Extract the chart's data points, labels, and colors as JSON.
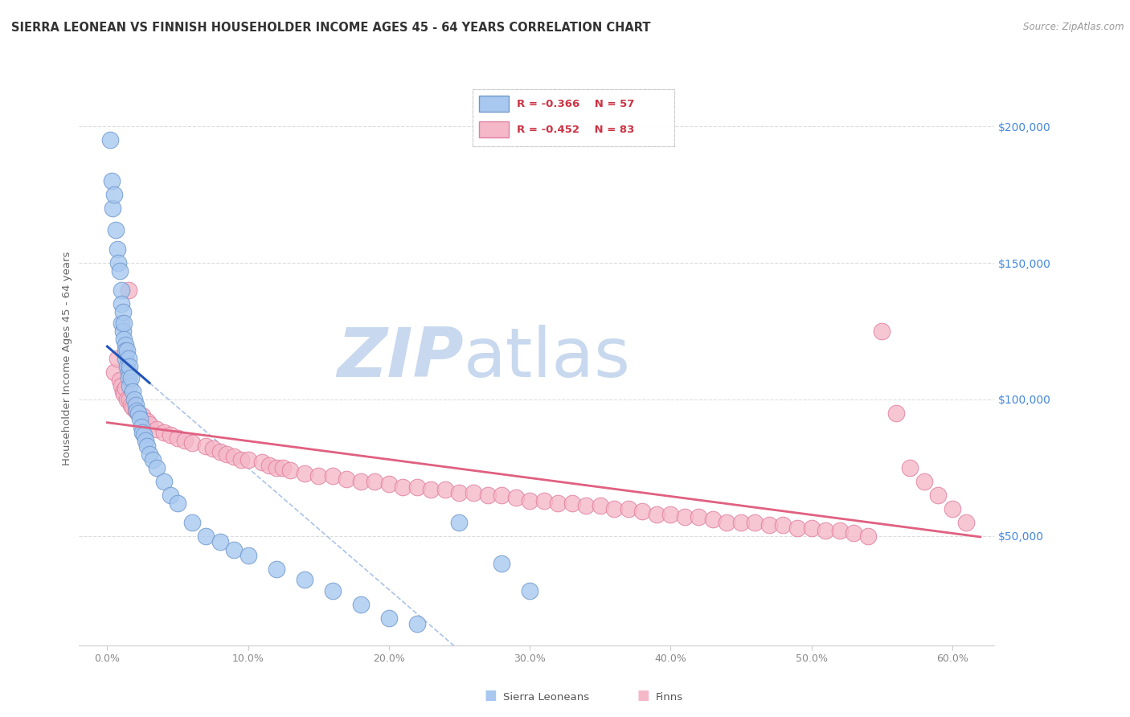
{
  "title": "SIERRA LEONEAN VS FINNISH HOUSEHOLDER INCOME AGES 45 - 64 YEARS CORRELATION CHART",
  "source": "Source: ZipAtlas.com",
  "ylabel": "Householder Income Ages 45 - 64 years",
  "xlabel_ticks": [
    "0.0%",
    "10.0%",
    "20.0%",
    "30.0%",
    "40.0%",
    "50.0%",
    "60.0%"
  ],
  "xlabel_vals": [
    0.0,
    10.0,
    20.0,
    30.0,
    40.0,
    50.0,
    60.0
  ],
  "ytick_vals": [
    50000,
    100000,
    150000,
    200000
  ],
  "ytick_labels": [
    "$50,000",
    "$100,000",
    "$150,000",
    "$200,000"
  ],
  "xlim": [
    -2.0,
    63
  ],
  "ylim": [
    10000,
    220000
  ],
  "legend_r1": "R = -0.366",
  "legend_n1": "N = 57",
  "legend_r2": "R = -0.452",
  "legend_n2": "N = 83",
  "sierra_color": "#A8C8F0",
  "finn_color": "#F5B8C8",
  "sierra_edge": "#7099CC",
  "finn_edge": "#E080A0",
  "sl_line_color": "#2255BB",
  "sl_dash_color": "#88AADE",
  "finn_line_color": "#E06080",
  "background_color": "#ffffff",
  "watermark_zip": "ZIP",
  "watermark_atlas": "atlas",
  "watermark_color": "#C8D8EE",
  "grid_color": "#DDDDDD",
  "title_color": "#333333",
  "axis_label_color": "#666666",
  "ytick_color": "#4488DD",
  "xtick_color": "#888888",
  "sl_x": [
    0.2,
    0.3,
    0.4,
    0.5,
    0.6,
    0.7,
    0.8,
    0.9,
    1.0,
    1.0,
    1.0,
    1.1,
    1.1,
    1.2,
    1.2,
    1.3,
    1.3,
    1.3,
    1.4,
    1.4,
    1.5,
    1.5,
    1.5,
    1.6,
    1.6,
    1.7,
    1.8,
    1.9,
    2.0,
    2.1,
    2.2,
    2.3,
    2.4,
    2.5,
    2.6,
    2.7,
    2.8,
    3.0,
    3.2,
    3.5,
    4.0,
    4.5,
    5.0,
    6.0,
    7.0,
    8.0,
    9.0,
    10.0,
    12.0,
    14.0,
    16.0,
    18.0,
    20.0,
    22.0,
    25.0,
    28.0,
    30.0
  ],
  "sl_y": [
    195000,
    180000,
    170000,
    175000,
    162000,
    155000,
    150000,
    147000,
    140000,
    135000,
    128000,
    132000,
    125000,
    128000,
    122000,
    120000,
    118000,
    115000,
    118000,
    112000,
    115000,
    110000,
    108000,
    112000,
    105000,
    108000,
    103000,
    100000,
    98000,
    96000,
    95000,
    93000,
    90000,
    88000,
    87000,
    85000,
    83000,
    80000,
    78000,
    75000,
    70000,
    65000,
    62000,
    55000,
    50000,
    48000,
    45000,
    43000,
    38000,
    34000,
    30000,
    25000,
    20000,
    18000,
    55000,
    40000,
    30000
  ],
  "finn_x": [
    0.5,
    0.7,
    0.9,
    1.0,
    1.1,
    1.2,
    1.3,
    1.4,
    1.5,
    1.6,
    1.7,
    1.8,
    2.0,
    2.2,
    2.5,
    2.8,
    3.0,
    3.5,
    4.0,
    4.5,
    5.0,
    5.5,
    6.0,
    7.0,
    7.5,
    8.0,
    8.5,
    9.0,
    9.5,
    10.0,
    11.0,
    11.5,
    12.0,
    12.5,
    13.0,
    14.0,
    15.0,
    16.0,
    17.0,
    18.0,
    19.0,
    20.0,
    21.0,
    22.0,
    23.0,
    24.0,
    25.0,
    26.0,
    27.0,
    28.0,
    29.0,
    30.0,
    31.0,
    32.0,
    33.0,
    34.0,
    35.0,
    36.0,
    37.0,
    38.0,
    39.0,
    40.0,
    41.0,
    42.0,
    43.0,
    44.0,
    45.0,
    46.0,
    47.0,
    48.0,
    49.0,
    50.0,
    51.0,
    52.0,
    53.0,
    54.0,
    55.0,
    56.0,
    57.0,
    58.0,
    59.0,
    60.0,
    61.0
  ],
  "finn_y": [
    110000,
    115000,
    107000,
    105000,
    103000,
    102000,
    104000,
    100000,
    140000,
    100000,
    98000,
    97000,
    96000,
    95000,
    94000,
    92000,
    91000,
    89000,
    88000,
    87000,
    86000,
    85000,
    84000,
    83000,
    82000,
    81000,
    80000,
    79000,
    78000,
    78000,
    77000,
    76000,
    75000,
    75000,
    74000,
    73000,
    72000,
    72000,
    71000,
    70000,
    70000,
    69000,
    68000,
    68000,
    67000,
    67000,
    66000,
    66000,
    65000,
    65000,
    64000,
    63000,
    63000,
    62000,
    62000,
    61000,
    61000,
    60000,
    60000,
    59000,
    58000,
    58000,
    57000,
    57000,
    56000,
    55000,
    55000,
    55000,
    54000,
    54000,
    53000,
    53000,
    52000,
    52000,
    51000,
    50000,
    125000,
    95000,
    75000,
    70000,
    65000,
    60000,
    55000
  ]
}
